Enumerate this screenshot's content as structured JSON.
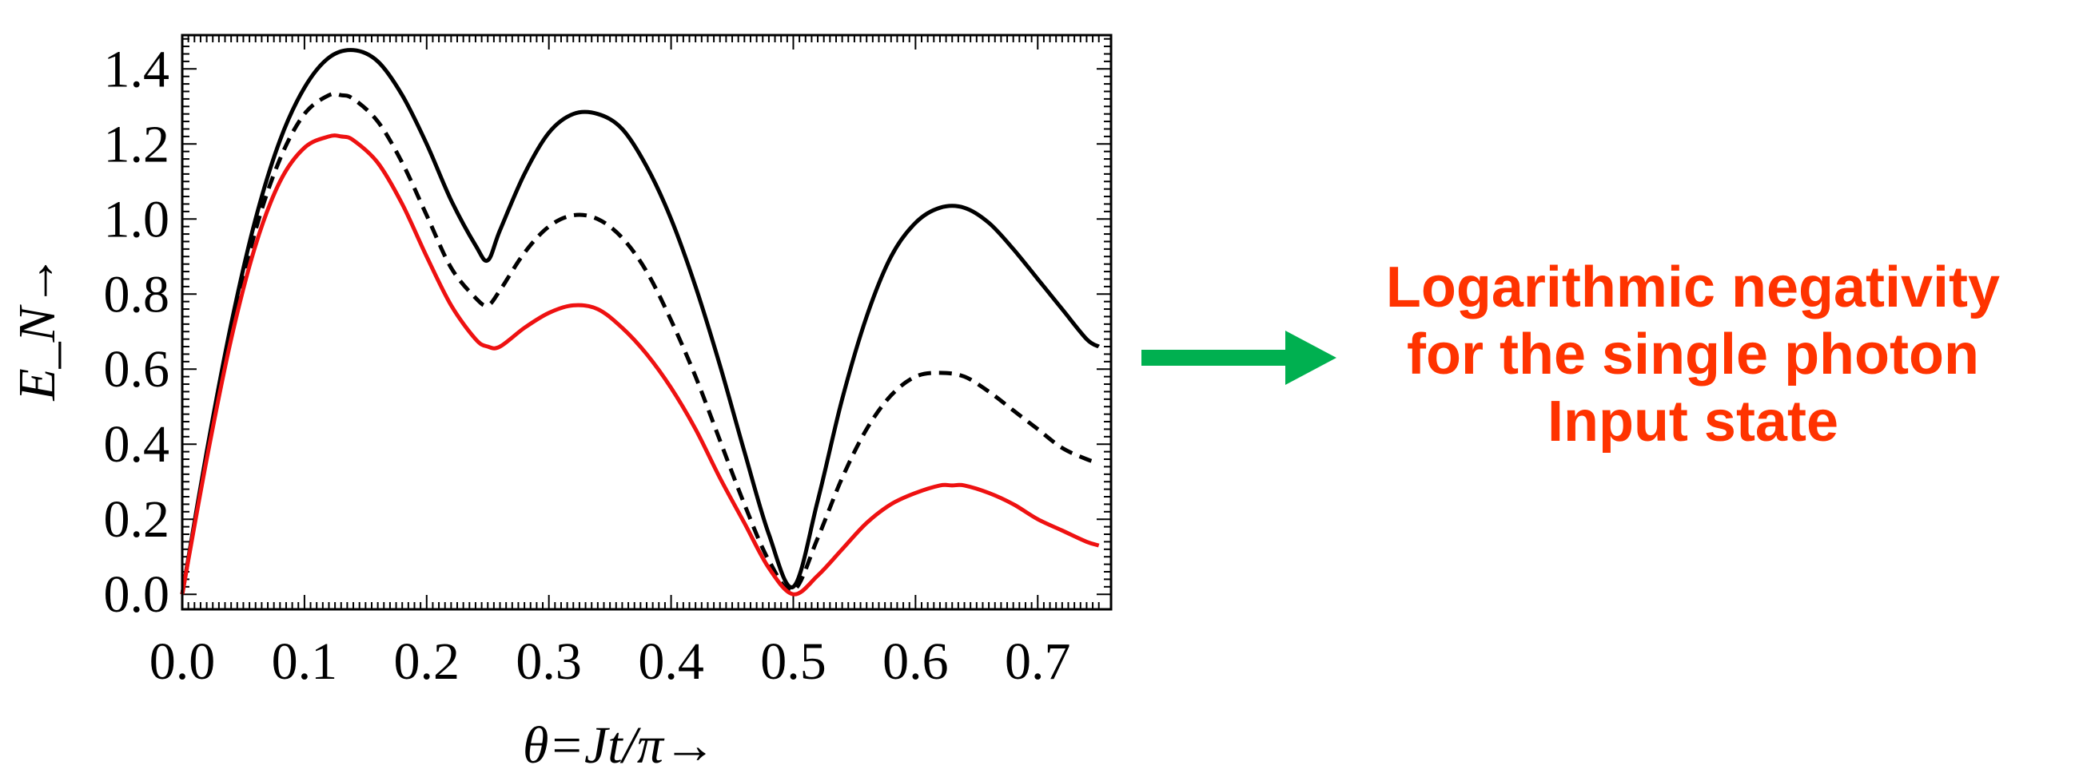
{
  "chart_data": {
    "type": "line",
    "xlabel": "θ=Jt/π→",
    "ylabel": "E_N→",
    "xlim": [
      0.0,
      0.76
    ],
    "ylim": [
      -0.04,
      1.49
    ],
    "xticks": [
      "0.0",
      "0.1",
      "0.2",
      "0.3",
      "0.4",
      "0.5",
      "0.6",
      "0.7"
    ],
    "yticks": [
      "0.0",
      "0.2",
      "0.4",
      "0.6",
      "0.8",
      "1.0",
      "1.2",
      "1.4"
    ],
    "grid": false,
    "series": [
      {
        "style": "solid",
        "color": "#000000",
        "x": [
          0.0,
          0.02,
          0.04,
          0.06,
          0.08,
          0.1,
          0.12,
          0.14,
          0.16,
          0.18,
          0.2,
          0.22,
          0.24,
          0.25,
          0.26,
          0.28,
          0.3,
          0.32,
          0.34,
          0.36,
          0.38,
          0.4,
          0.42,
          0.44,
          0.46,
          0.48,
          0.5,
          0.52,
          0.54,
          0.56,
          0.58,
          0.6,
          0.62,
          0.64,
          0.66,
          0.68,
          0.7,
          0.72,
          0.74,
          0.75
        ],
        "y": [
          0.0,
          0.38,
          0.72,
          1.0,
          1.21,
          1.35,
          1.43,
          1.45,
          1.42,
          1.33,
          1.2,
          1.05,
          0.93,
          0.89,
          0.97,
          1.12,
          1.23,
          1.28,
          1.28,
          1.24,
          1.14,
          1.0,
          0.82,
          0.61,
          0.38,
          0.16,
          0.02,
          0.25,
          0.52,
          0.74,
          0.9,
          0.99,
          1.03,
          1.03,
          0.99,
          0.92,
          0.84,
          0.76,
          0.68,
          0.66
        ]
      },
      {
        "style": "dashed",
        "color": "#000000",
        "x": [
          0.0,
          0.02,
          0.04,
          0.06,
          0.08,
          0.1,
          0.12,
          0.13,
          0.14,
          0.16,
          0.18,
          0.2,
          0.22,
          0.24,
          0.25,
          0.26,
          0.28,
          0.3,
          0.32,
          0.34,
          0.36,
          0.38,
          0.4,
          0.42,
          0.44,
          0.46,
          0.48,
          0.5,
          0.52,
          0.54,
          0.56,
          0.58,
          0.6,
          0.62,
          0.64,
          0.66,
          0.68,
          0.7,
          0.72,
          0.74,
          0.75
        ],
        "y": [
          0.0,
          0.37,
          0.7,
          0.97,
          1.16,
          1.28,
          1.33,
          1.33,
          1.32,
          1.26,
          1.15,
          1.01,
          0.87,
          0.79,
          0.77,
          0.81,
          0.91,
          0.98,
          1.01,
          1.0,
          0.95,
          0.86,
          0.73,
          0.58,
          0.41,
          0.24,
          0.09,
          0.01,
          0.15,
          0.31,
          0.44,
          0.53,
          0.58,
          0.59,
          0.58,
          0.54,
          0.49,
          0.44,
          0.39,
          0.36,
          0.35
        ]
      },
      {
        "style": "solid",
        "color": "#ee1111",
        "x": [
          0.0,
          0.02,
          0.04,
          0.06,
          0.08,
          0.1,
          0.12,
          0.13,
          0.14,
          0.16,
          0.18,
          0.2,
          0.22,
          0.24,
          0.25,
          0.26,
          0.28,
          0.3,
          0.32,
          0.34,
          0.36,
          0.38,
          0.4,
          0.42,
          0.44,
          0.46,
          0.48,
          0.5,
          0.52,
          0.54,
          0.56,
          0.58,
          0.6,
          0.62,
          0.63,
          0.64,
          0.66,
          0.68,
          0.7,
          0.72,
          0.74,
          0.75
        ],
        "y": [
          0.0,
          0.36,
          0.68,
          0.93,
          1.1,
          1.19,
          1.22,
          1.22,
          1.21,
          1.15,
          1.04,
          0.9,
          0.77,
          0.68,
          0.66,
          0.66,
          0.71,
          0.75,
          0.77,
          0.76,
          0.71,
          0.64,
          0.55,
          0.44,
          0.31,
          0.19,
          0.07,
          0.0,
          0.05,
          0.12,
          0.19,
          0.24,
          0.27,
          0.29,
          0.29,
          0.29,
          0.27,
          0.24,
          0.2,
          0.17,
          0.14,
          0.13
        ]
      }
    ],
    "annotation": {
      "lines": [
        "Logarithmic negativity",
        "for the single photon",
        "Input state"
      ],
      "text_color": "#ff3300",
      "arrow_color": "#00b050"
    }
  }
}
